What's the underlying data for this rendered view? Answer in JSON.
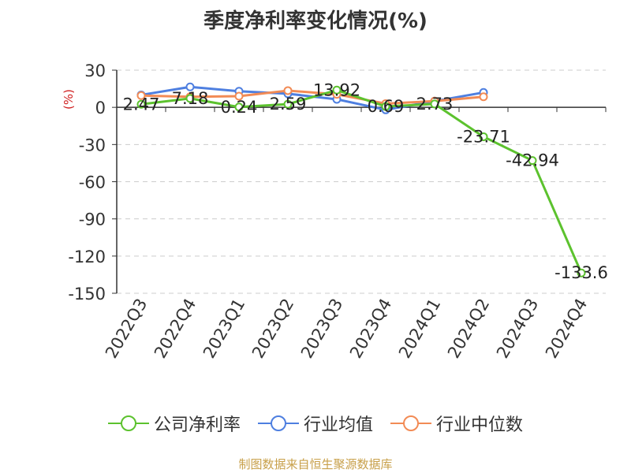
{
  "chart_data": {
    "type": "line",
    "title": "季度净利率变化情况(%)",
    "ylabel": "(%)",
    "categories": [
      "2022Q3",
      "2022Q4",
      "2023Q1",
      "2023Q2",
      "2023Q3",
      "2023Q4",
      "2024Q1",
      "2024Q2",
      "2024Q3",
      "2024Q4"
    ],
    "ylim": [
      -150,
      30
    ],
    "yticks": [
      30,
      0,
      -30,
      -60,
      -90,
      -120,
      -150
    ],
    "grid": true,
    "legend_position": "bottom",
    "series": [
      {
        "name": "公司净利率",
        "color": "#5cc22e",
        "values": [
          2.47,
          7.18,
          0.24,
          2.59,
          13.92,
          0.69,
          2.73,
          -23.71,
          -42.94,
          -133.6
        ],
        "labels": [
          "2.47",
          "7.18",
          "0.24",
          "2.59",
          "13.92",
          "0.69",
          "2.73",
          "-23.71",
          "-42.94",
          "-133.6"
        ]
      },
      {
        "name": "行业均值",
        "color": "#4e7fe0",
        "values": [
          10.0,
          16.5,
          13.0,
          11.0,
          6.5,
          -2.0,
          5.0,
          12.0,
          null,
          null
        ]
      },
      {
        "name": "行业中位数",
        "color": "#f28b55",
        "values": [
          9.5,
          8.5,
          9.0,
          13.5,
          10.5,
          3.0,
          5.0,
          8.5,
          null,
          null
        ]
      }
    ]
  },
  "source": {
    "text": "制图数据来自恒生聚源数据库",
    "color": "#c8a04a"
  },
  "ylabel_color": "#d02020"
}
